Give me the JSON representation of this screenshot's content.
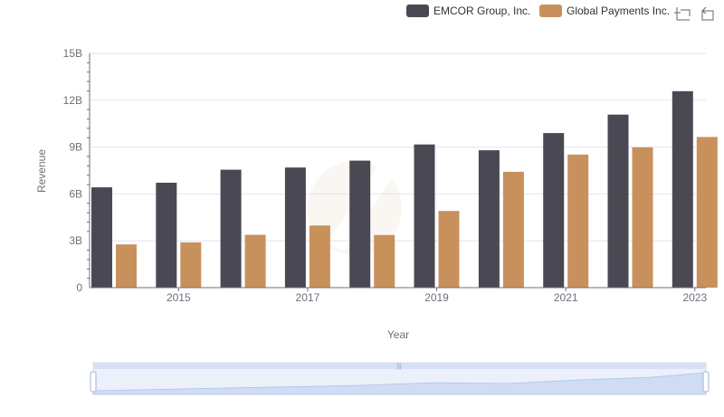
{
  "toolbar": {
    "zoom_icon": "zoom-icon",
    "restore_icon": "restore-icon"
  },
  "chart_data": {
    "type": "bar",
    "title": "",
    "xlabel": "Year",
    "ylabel": "Revenue",
    "ylim": [
      0,
      15000000000
    ],
    "y_ticks": [
      "0",
      "3B",
      "6B",
      "9B",
      "12B",
      "15B"
    ],
    "x_tick_labels": [
      "2015",
      "2017",
      "2019",
      "2021",
      "2023"
    ],
    "categories": [
      "2014",
      "2015",
      "2016",
      "2017",
      "2018",
      "2019",
      "2020",
      "2021",
      "2022",
      "2023"
    ],
    "grid": true,
    "legend_position": "top-right",
    "series": [
      {
        "name": "EMCOR Group, Inc.",
        "color": "#4a4953",
        "values": [
          6420000000,
          6720000000,
          7550000000,
          7690000000,
          8130000000,
          9170000000,
          8800000000,
          9900000000,
          11080000000,
          12580000000
        ]
      },
      {
        "name": "Global Payments Inc.",
        "color": "#c8915c",
        "values": [
          2770000000,
          2900000000,
          3380000000,
          3980000000,
          3370000000,
          4910000000,
          7420000000,
          8520000000,
          8980000000,
          9650000000
        ]
      }
    ]
  }
}
